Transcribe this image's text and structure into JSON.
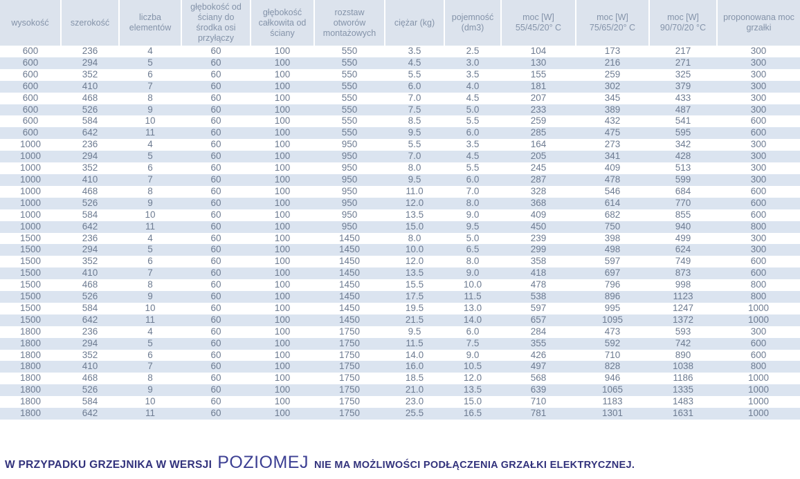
{
  "colors": {
    "header_bg": "#dce3ed",
    "stripe_bg": "#dbe4f0",
    "header_text": "#8493a9",
    "cell_text": "#6d7b91",
    "note_text": "#32327c",
    "note_highlight": "#3c3f93"
  },
  "table": {
    "headers": [
      "wysokość",
      "szerokość",
      "liczba elementów",
      "głębokość od ściany do środka osi przyłączy",
      "głębokość całkowita od ściany",
      "rozstaw otworów montażowych",
      "ciężar (kg)",
      "pojemność (dm3)",
      "moc [W] 55/45/20° C",
      "moc [W] 75/65/20° C",
      "moc [W] 90/70/20 °C",
      "proponowana moc grzałki"
    ],
    "rows": [
      [
        "600",
        "236",
        "4",
        "60",
        "100",
        "550",
        "3.5",
        "2.5",
        "104",
        "173",
        "217",
        "300"
      ],
      [
        "600",
        "294",
        "5",
        "60",
        "100",
        "550",
        "4.5",
        "3.0",
        "130",
        "216",
        "271",
        "300"
      ],
      [
        "600",
        "352",
        "6",
        "60",
        "100",
        "550",
        "5.5",
        "3.5",
        "155",
        "259",
        "325",
        "300"
      ],
      [
        "600",
        "410",
        "7",
        "60",
        "100",
        "550",
        "6.0",
        "4.0",
        "181",
        "302",
        "379",
        "300"
      ],
      [
        "600",
        "468",
        "8",
        "60",
        "100",
        "550",
        "7.0",
        "4.5",
        "207",
        "345",
        "433",
        "300"
      ],
      [
        "600",
        "526",
        "9",
        "60",
        "100",
        "550",
        "7.5",
        "5.0",
        "233",
        "389",
        "487",
        "300"
      ],
      [
        "600",
        "584",
        "10",
        "60",
        "100",
        "550",
        "8.5",
        "5.5",
        "259",
        "432",
        "541",
        "600"
      ],
      [
        "600",
        "642",
        "11",
        "60",
        "100",
        "550",
        "9.5",
        "6.0",
        "285",
        "475",
        "595",
        "600"
      ],
      [
        "1000",
        "236",
        "4",
        "60",
        "100",
        "950",
        "5.5",
        "3.5",
        "164",
        "273",
        "342",
        "300"
      ],
      [
        "1000",
        "294",
        "5",
        "60",
        "100",
        "950",
        "7.0",
        "4.5",
        "205",
        "341",
        "428",
        "300"
      ],
      [
        "1000",
        "352",
        "6",
        "60",
        "100",
        "950",
        "8.0",
        "5.5",
        "245",
        "409",
        "513",
        "300"
      ],
      [
        "1000",
        "410",
        "7",
        "60",
        "100",
        "950",
        "9.5",
        "6.0",
        "287",
        "478",
        "599",
        "300"
      ],
      [
        "1000",
        "468",
        "8",
        "60",
        "100",
        "950",
        "11.0",
        "7.0",
        "328",
        "546",
        "684",
        "600"
      ],
      [
        "1000",
        "526",
        "9",
        "60",
        "100",
        "950",
        "12.0",
        "8.0",
        "368",
        "614",
        "770",
        "600"
      ],
      [
        "1000",
        "584",
        "10",
        "60",
        "100",
        "950",
        "13.5",
        "9.0",
        "409",
        "682",
        "855",
        "600"
      ],
      [
        "1000",
        "642",
        "11",
        "60",
        "100",
        "950",
        "15.0",
        "9.5",
        "450",
        "750",
        "940",
        "800"
      ],
      [
        "1500",
        "236",
        "4",
        "60",
        "100",
        "1450",
        "8.0",
        "5.0",
        "239",
        "398",
        "499",
        "300"
      ],
      [
        "1500",
        "294",
        "5",
        "60",
        "100",
        "1450",
        "10.0",
        "6.5",
        "299",
        "498",
        "624",
        "300"
      ],
      [
        "1500",
        "352",
        "6",
        "60",
        "100",
        "1450",
        "12.0",
        "8.0",
        "358",
        "597",
        "749",
        "600"
      ],
      [
        "1500",
        "410",
        "7",
        "60",
        "100",
        "1450",
        "13.5",
        "9.0",
        "418",
        "697",
        "873",
        "600"
      ],
      [
        "1500",
        "468",
        "8",
        "60",
        "100",
        "1450",
        "15.5",
        "10.0",
        "478",
        "796",
        "998",
        "800"
      ],
      [
        "1500",
        "526",
        "9",
        "60",
        "100",
        "1450",
        "17.5",
        "11.5",
        "538",
        "896",
        "1123",
        "800"
      ],
      [
        "1500",
        "584",
        "10",
        "60",
        "100",
        "1450",
        "19.5",
        "13.0",
        "597",
        "995",
        "1247",
        "1000"
      ],
      [
        "1500",
        "642",
        "11",
        "60",
        "100",
        "1450",
        "21.5",
        "14.0",
        "657",
        "1095",
        "1372",
        "1000"
      ],
      [
        "1800",
        "236",
        "4",
        "60",
        "100",
        "1750",
        "9.5",
        "6.0",
        "284",
        "473",
        "593",
        "300"
      ],
      [
        "1800",
        "294",
        "5",
        "60",
        "100",
        "1750",
        "11.5",
        "7.5",
        "355",
        "592",
        "742",
        "600"
      ],
      [
        "1800",
        "352",
        "6",
        "60",
        "100",
        "1750",
        "14.0",
        "9.0",
        "426",
        "710",
        "890",
        "600"
      ],
      [
        "1800",
        "410",
        "7",
        "60",
        "100",
        "1750",
        "16.0",
        "10.5",
        "497",
        "828",
        "1038",
        "800"
      ],
      [
        "1800",
        "468",
        "8",
        "60",
        "100",
        "1750",
        "18.5",
        "12.0",
        "568",
        "946",
        "1186",
        "1000"
      ],
      [
        "1800",
        "526",
        "9",
        "60",
        "100",
        "1750",
        "21.0",
        "13.5",
        "639",
        "1065",
        "1335",
        "1000"
      ],
      [
        "1800",
        "584",
        "10",
        "60",
        "100",
        "1750",
        "23.0",
        "15.0",
        "710",
        "1183",
        "1483",
        "1000"
      ],
      [
        "1800",
        "642",
        "11",
        "60",
        "100",
        "1750",
        "25.5",
        "16.5",
        "781",
        "1301",
        "1631",
        "1000"
      ]
    ]
  },
  "note": {
    "part1": "W PRZYPADKU GRZEJNIKA W WERSJI",
    "highlight": "POZIOMEJ",
    "part2": "NIE MA MOŻLIWOŚCI PODŁĄCZENIA GRZAŁKI ELEKTRYCZNEJ."
  }
}
